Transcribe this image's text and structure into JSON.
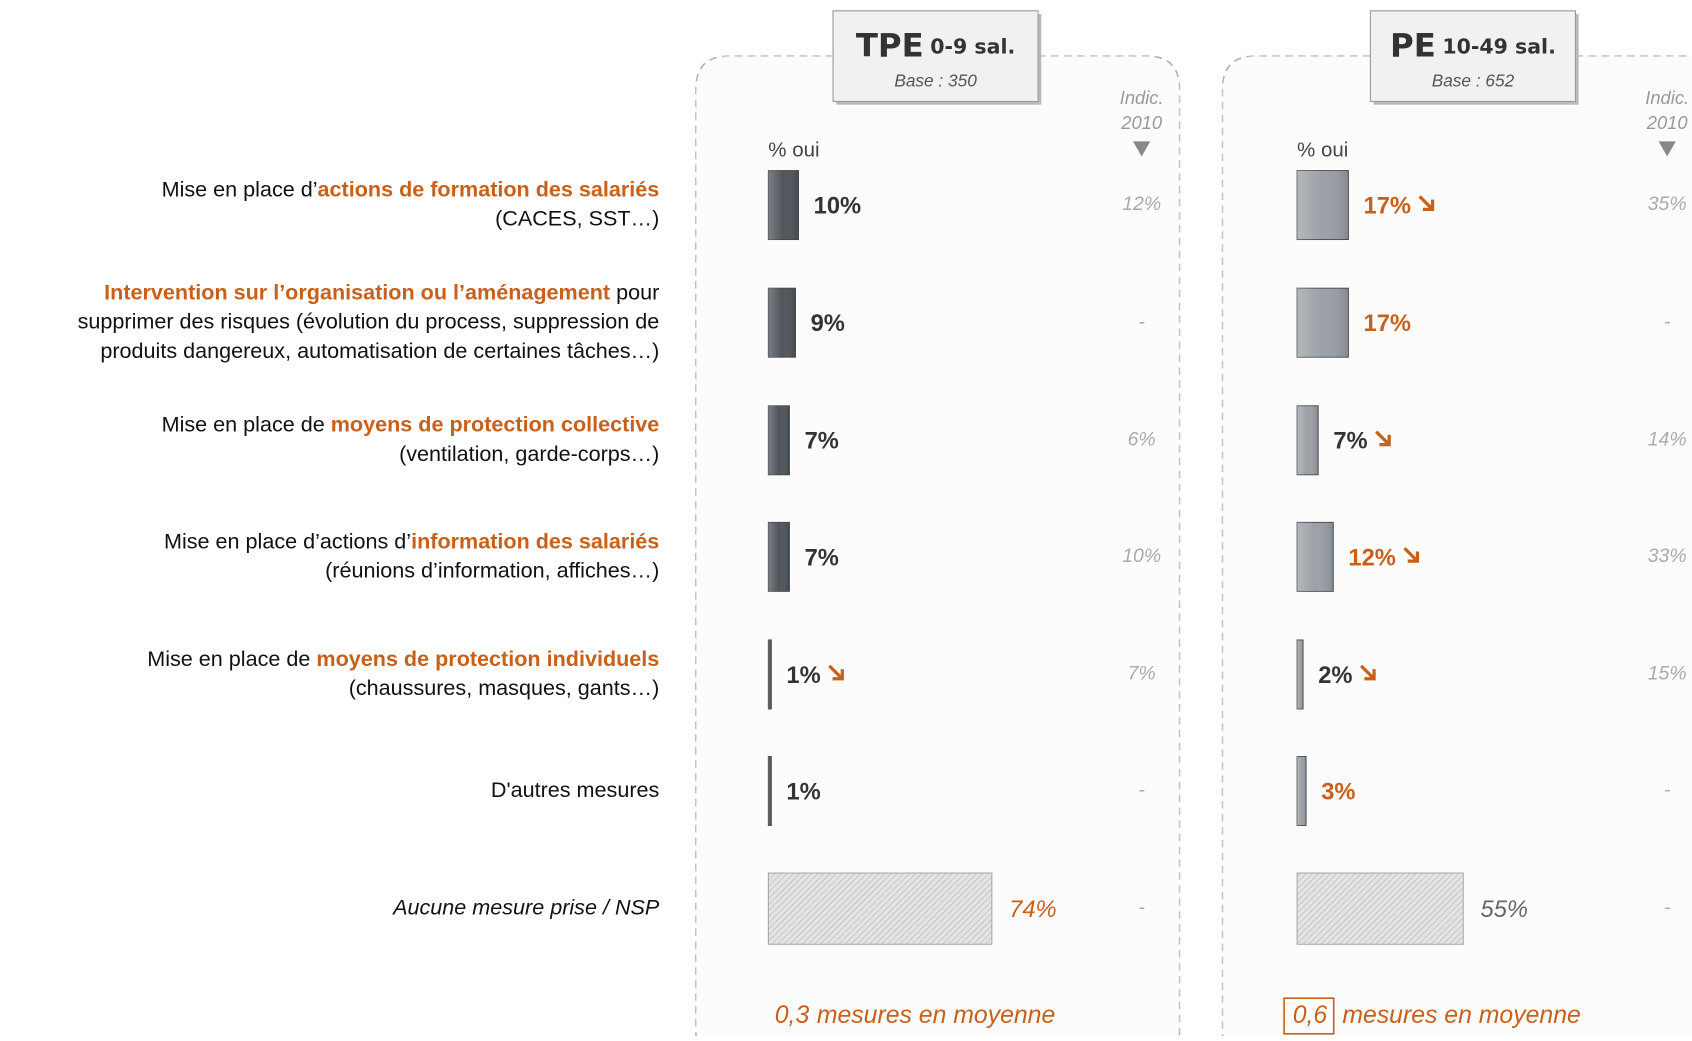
{
  "rows": [
    [
      [
        {
          "text": "Mise en place d’",
          "style": "normal"
        },
        {
          "text": "actions de formation des salariés",
          "style": "emphasis"
        }
      ],
      [
        {
          "text": "(CACES, SST…)",
          "style": "normal"
        }
      ]
    ],
    [
      [
        {
          "text": "Intervention sur l’organisation ou l’aménagement",
          "style": "emphasis"
        },
        {
          "text": " pour",
          "style": "normal"
        }
      ],
      [
        {
          "text": "supprimer des risques (évolution du process, suppression de",
          "style": "normal"
        }
      ],
      [
        {
          "text": "produits dangereux, automatisation de certaines tâches…)",
          "style": "normal"
        }
      ]
    ],
    [
      [
        {
          "text": "Mise en place de ",
          "style": "normal"
        },
        {
          "text": "moyens de protection collective",
          "style": "emphasis"
        }
      ],
      [
        {
          "text": "(ventilation, garde-corps…)",
          "style": "normal"
        }
      ]
    ],
    [
      [
        {
          "text": "Mise en place d’actions d’",
          "style": "normal"
        },
        {
          "text": "information des salariés",
          "style": "emphasis"
        }
      ],
      [
        {
          "text": "(réunions d’information, affiches…)",
          "style": "normal"
        }
      ]
    ],
    [
      [
        {
          "text": "Mise en place de ",
          "style": "normal"
        },
        {
          "text": "moyens de protection individuels",
          "style": "emphasis"
        }
      ],
      [
        {
          "text": "(chaussures, masques, gants…)",
          "style": "normal"
        }
      ]
    ],
    [
      [
        {
          "text": "D'autres mesures",
          "style": "normal"
        }
      ]
    ],
    [
      [
        {
          "text": "Aucune mesure prise / NSP",
          "style": "italic"
        }
      ]
    ]
  ],
  "chart_data": [
    {
      "type": "bar",
      "title": "TPE",
      "subtitle": "0-9 sal.",
      "base": "Base : 350",
      "axis_label": "% oui",
      "xlim": [
        0,
        100
      ],
      "values": [
        10,
        9,
        7,
        7,
        1,
        1,
        74
      ],
      "value_labels": [
        "10%",
        "9%",
        "7%",
        "7%",
        "1%",
        "1%",
        "74%"
      ],
      "value_label_colors": [
        "#333333",
        "#333333",
        "#333333",
        "#333333",
        "#333333",
        "#333333",
        "#c8601a"
      ],
      "trend": [
        null,
        null,
        null,
        null,
        "down",
        null,
        null
      ],
      "colors": [
        "#50555b",
        "#50555b",
        "#50555b",
        "#50555b",
        "#50555b",
        "#50555b",
        "hatch"
      ],
      "indic_title": [
        "Indic.",
        "2010"
      ],
      "indic_2010_labels": [
        "12%",
        "-",
        "6%",
        "10%",
        "7%",
        "-",
        "-"
      ],
      "average": "0,3",
      "average_label": "mesures en moyenne",
      "average_boxed": false
    },
    {
      "type": "bar",
      "title": "PE",
      "subtitle": "10-49 sal.",
      "base": "Base : 652",
      "axis_label": "% oui",
      "xlim": [
        0,
        100
      ],
      "values": [
        17,
        17,
        7,
        12,
        2,
        3,
        55
      ],
      "value_labels": [
        "17%",
        "17%",
        "7%",
        "12%",
        "2%",
        "3%",
        "55%"
      ],
      "value_label_colors": [
        "#c8601a",
        "#c8601a",
        "#333333",
        "#c8601a",
        "#333333",
        "#c8601a",
        "#666666"
      ],
      "trend": [
        "down",
        null,
        "down",
        "down",
        "down",
        null,
        null
      ],
      "colors": [
        "#9aa0a6",
        "#9aa0a6",
        "#9aa0a6",
        "#9aa0a6",
        "#9aa0a6",
        "#9aa0a6",
        "hatch"
      ],
      "indic_title": [
        "Indic.",
        "2010"
      ],
      "indic_2010_labels": [
        "35%",
        "-",
        "14%",
        "33%",
        "15%",
        "-",
        "-"
      ],
      "average": "0,6",
      "average_label": "mesures en moyenne",
      "average_boxed": true
    }
  ]
}
